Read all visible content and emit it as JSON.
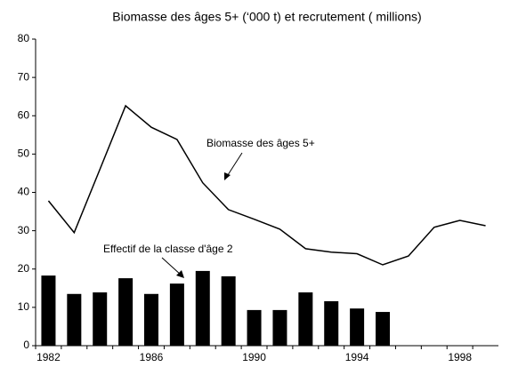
{
  "chart_data": {
    "type": "bar-line",
    "title": "Biomasse des âges 5+ (‘000 t) et recrutement ( millions)",
    "categories": [
      "1982",
      null,
      null,
      null,
      "1986",
      null,
      null,
      null,
      "1990",
      null,
      null,
      null,
      "1994",
      null,
      null,
      null,
      "1998",
      null
    ],
    "series": [
      {
        "name": "Effectif de la classe d'âge 2",
        "type": "bar",
        "color": "#000000",
        "values": [
          18.3,
          13.5,
          13.9,
          17.6,
          13.5,
          16.2,
          19.5,
          18.1,
          9.3,
          9.3,
          13.9,
          11.6,
          9.7,
          8.8,
          null,
          null,
          null,
          null
        ]
      },
      {
        "name": "Biomasse des âges 5+",
        "type": "line",
        "color": "#000000",
        "values": [
          37.8,
          29.5,
          46,
          62.6,
          57,
          53.8,
          42.5,
          35.5,
          33,
          30.4,
          25.3,
          24.4,
          24,
          21.1,
          23.4,
          30.9,
          32.7,
          31.3
        ]
      }
    ],
    "ylim": [
      0,
      80
    ],
    "yticks": [
      0,
      10,
      20,
      30,
      40,
      50,
      60,
      70,
      80
    ]
  }
}
